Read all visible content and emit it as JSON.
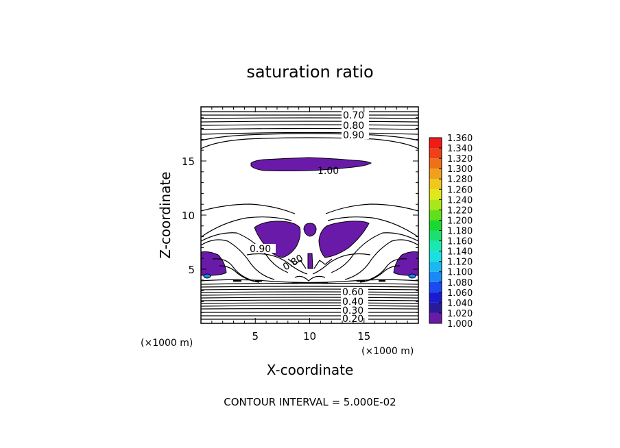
{
  "chart_data": {
    "type": "contour",
    "title": "saturation ratio",
    "xlabel": "X-coordinate",
    "ylabel": "Z-coordinate",
    "x_unit": "(×1000 m)",
    "y_unit": "(×1000 m)",
    "xlim": [
      0,
      20
    ],
    "ylim": [
      0,
      20
    ],
    "x_ticks": [
      5,
      10,
      15
    ],
    "y_ticks": [
      5,
      10,
      15
    ],
    "contour_interval_text": "CONTOUR INTERVAL = 5.000E-02",
    "contour_labels": [
      "0.70",
      "0.80",
      "0.90",
      "1.00",
      "0.90",
      "0.80",
      "0.60",
      "0.40",
      "0.30",
      "0.20"
    ],
    "colorbar": {
      "levels": [
        "1.000",
        "1.020",
        "1.040",
        "1.060",
        "1.080",
        "1.100",
        "1.120",
        "1.140",
        "1.160",
        "1.180",
        "1.200",
        "1.220",
        "1.240",
        "1.260",
        "1.280",
        "1.300",
        "1.320",
        "1.340",
        "1.360"
      ],
      "colors": [
        "#6a1aa8",
        "#2a1a9a",
        "#1a1ad0",
        "#1a4af0",
        "#1a88f5",
        "#1ab8f0",
        "#1ae0e0",
        "#1ae8b0",
        "#1ae070",
        "#1ad830",
        "#60e01a",
        "#a8e81a",
        "#e0e81a",
        "#f0c81a",
        "#f0a01a",
        "#f0701a",
        "#f0401a",
        "#f01a1a",
        "#f08080"
      ]
    },
    "regions_ge_1": [
      {
        "name": "upper band",
        "x": [
          5,
          15.5
        ],
        "z": [
          14.2,
          15.2
        ]
      },
      {
        "name": "left lobe",
        "x": [
          4.7,
          9
        ],
        "z": [
          6.3,
          9.2
        ]
      },
      {
        "name": "right lobe",
        "x": [
          10.7,
          16
        ],
        "z": [
          6.4,
          9.1
        ]
      },
      {
        "name": "central blob",
        "x": [
          9.5,
          10.5
        ],
        "z": [
          8.3,
          9.2
        ]
      },
      {
        "name": "central column",
        "x": [
          9.8,
          10.2
        ],
        "z": [
          5.1,
          6.4
        ]
      },
      {
        "name": "left edge",
        "x": [
          0,
          2.5
        ],
        "z": [
          4.3,
          6.2
        ]
      },
      {
        "name": "right edge",
        "x": [
          17.8,
          20
        ],
        "z": [
          4.3,
          6.2
        ]
      }
    ]
  }
}
